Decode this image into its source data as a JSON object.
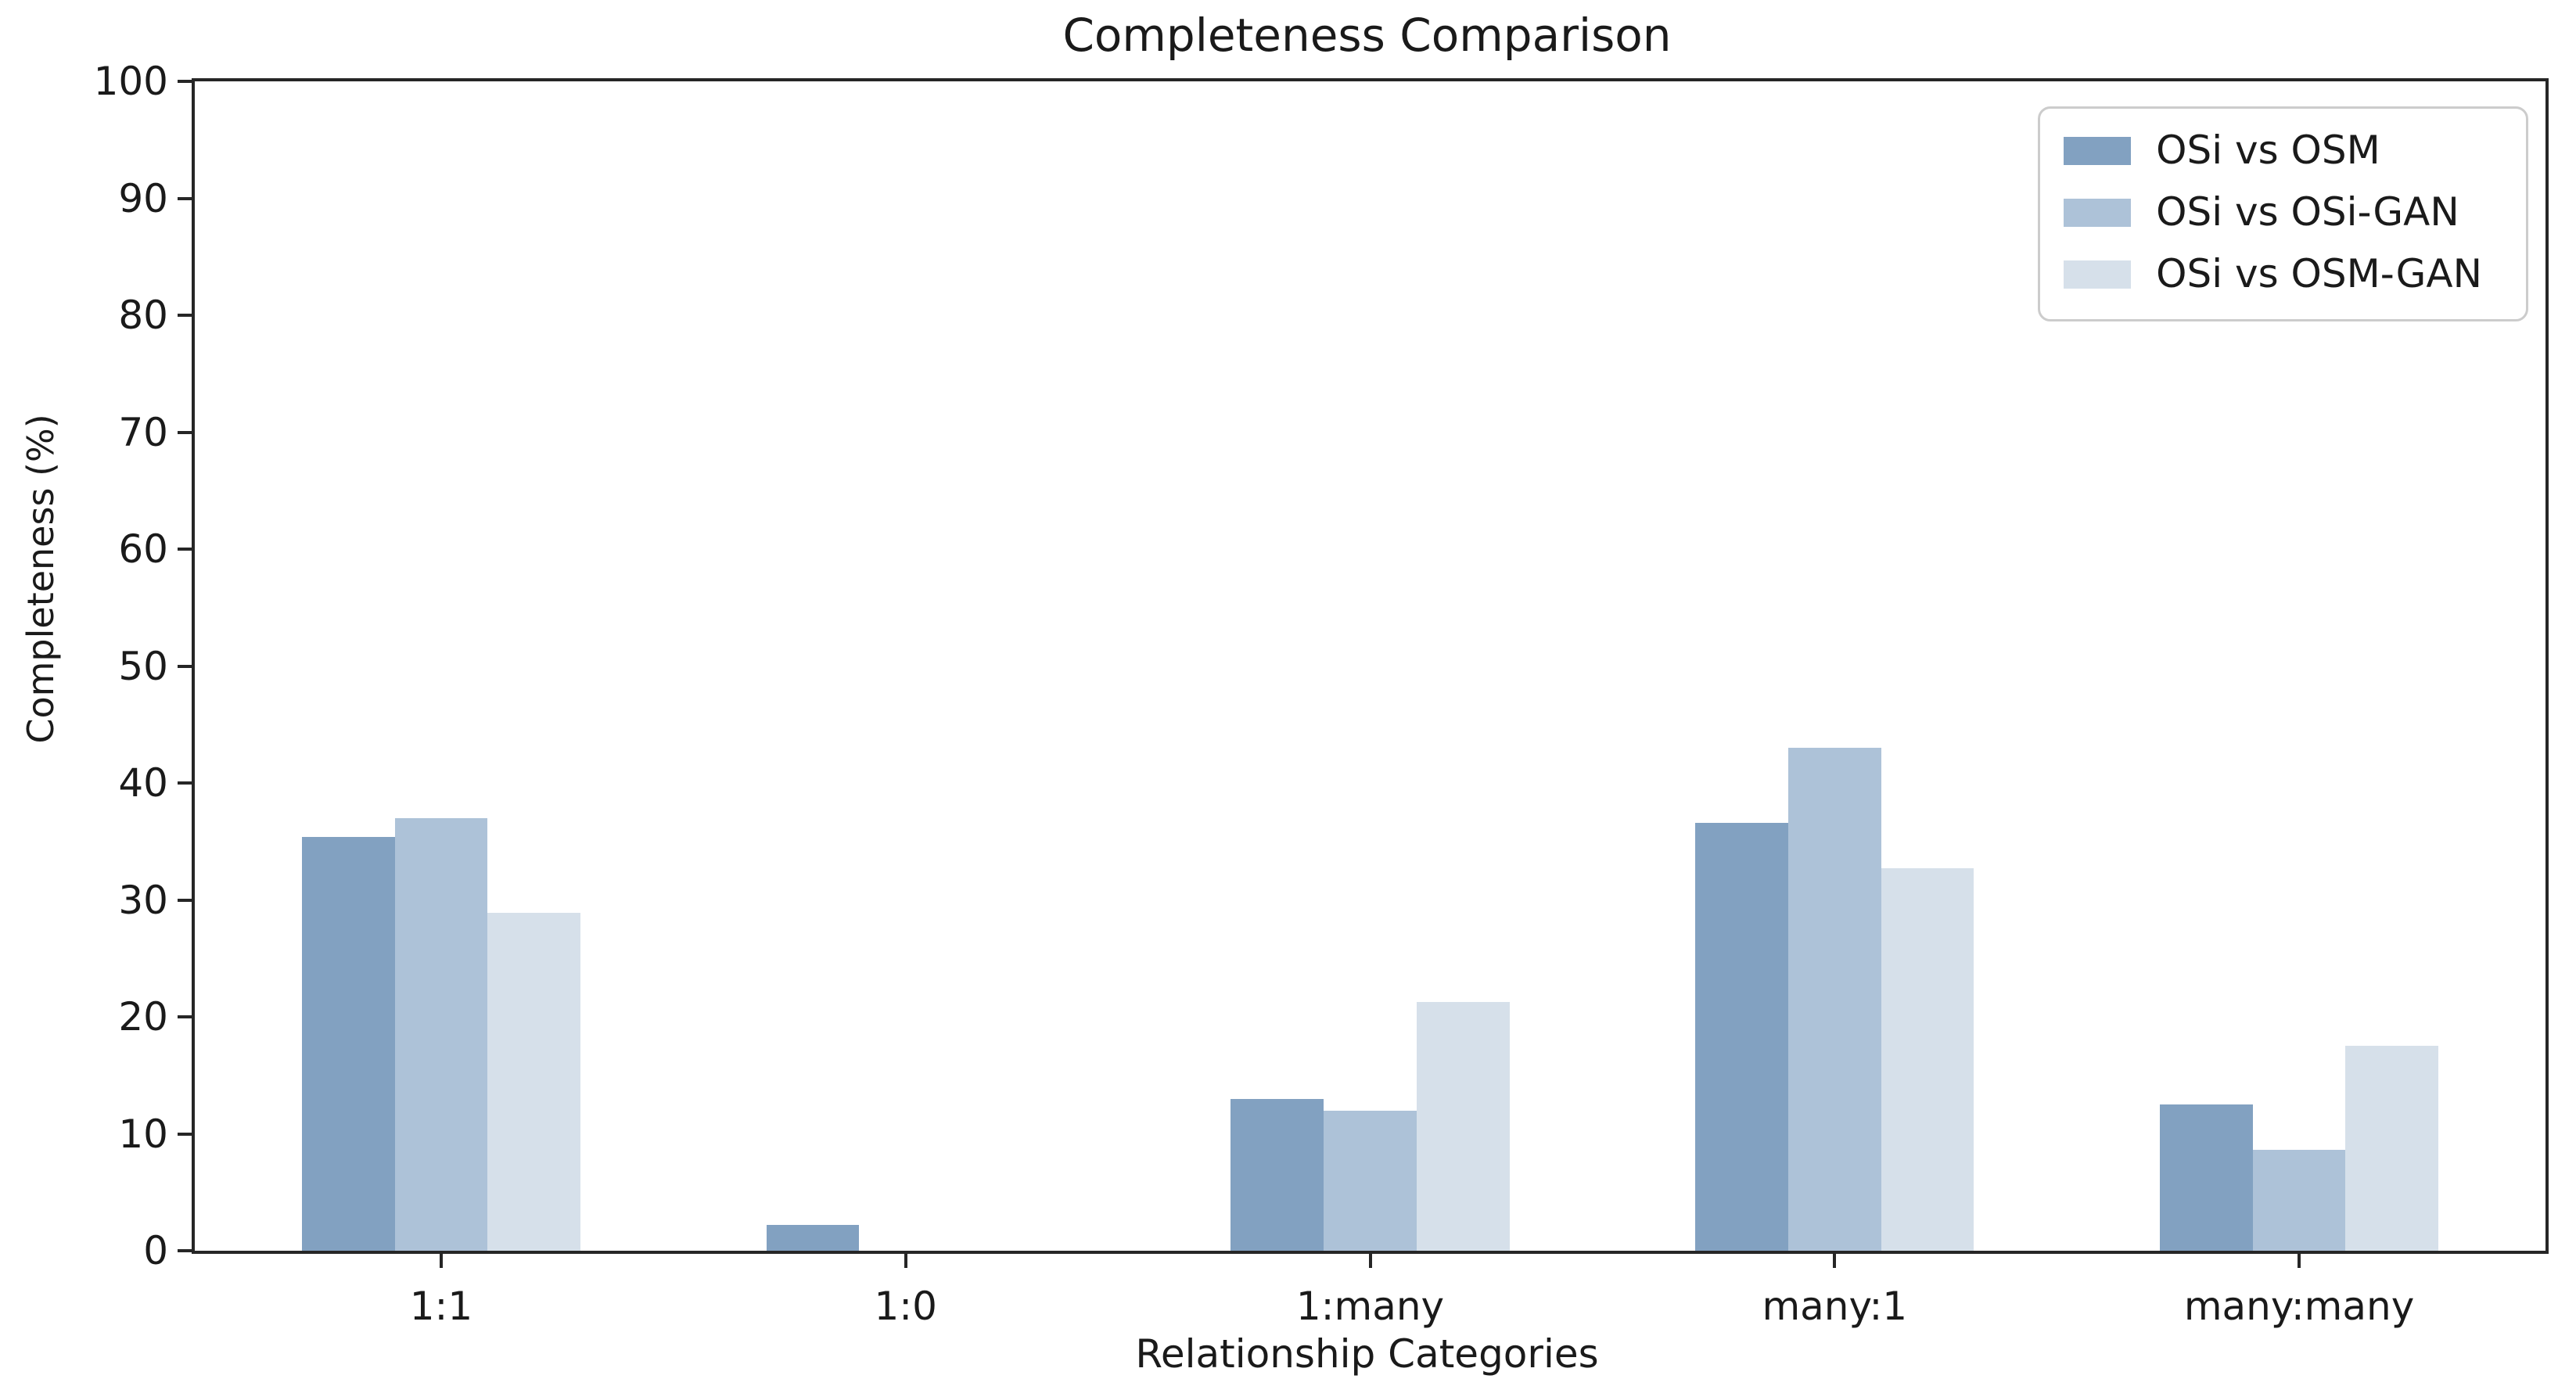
{
  "chart_data": {
    "type": "bar",
    "title": "Completeness Comparison",
    "xlabel": "Relationship Categories",
    "ylabel": "Completeness (%)",
    "categories": [
      "1:1",
      "1:0",
      "1:many",
      "many:1",
      "many:many"
    ],
    "series": [
      {
        "name": "OSi vs OSM",
        "color": "#82a1c1",
        "values": [
          35.4,
          2.2,
          13.0,
          36.6,
          12.5
        ]
      },
      {
        "name": "OSi vs OSi-GAN",
        "color": "#adc2d8",
        "values": [
          37.0,
          0.0,
          12.0,
          43.0,
          8.6
        ]
      },
      {
        "name": "OSi vs OSM-GAN",
        "color": "#d6e0ea",
        "values": [
          28.9,
          0.0,
          21.3,
          32.7,
          17.5
        ]
      }
    ],
    "ylim": [
      0,
      100
    ],
    "yticks": [
      0,
      10,
      20,
      30,
      40,
      50,
      60,
      70,
      80,
      90,
      100
    ],
    "grid": false,
    "legend_position": "upper right",
    "axis_color": "#262626",
    "text_color": "#1a1a1a"
  }
}
